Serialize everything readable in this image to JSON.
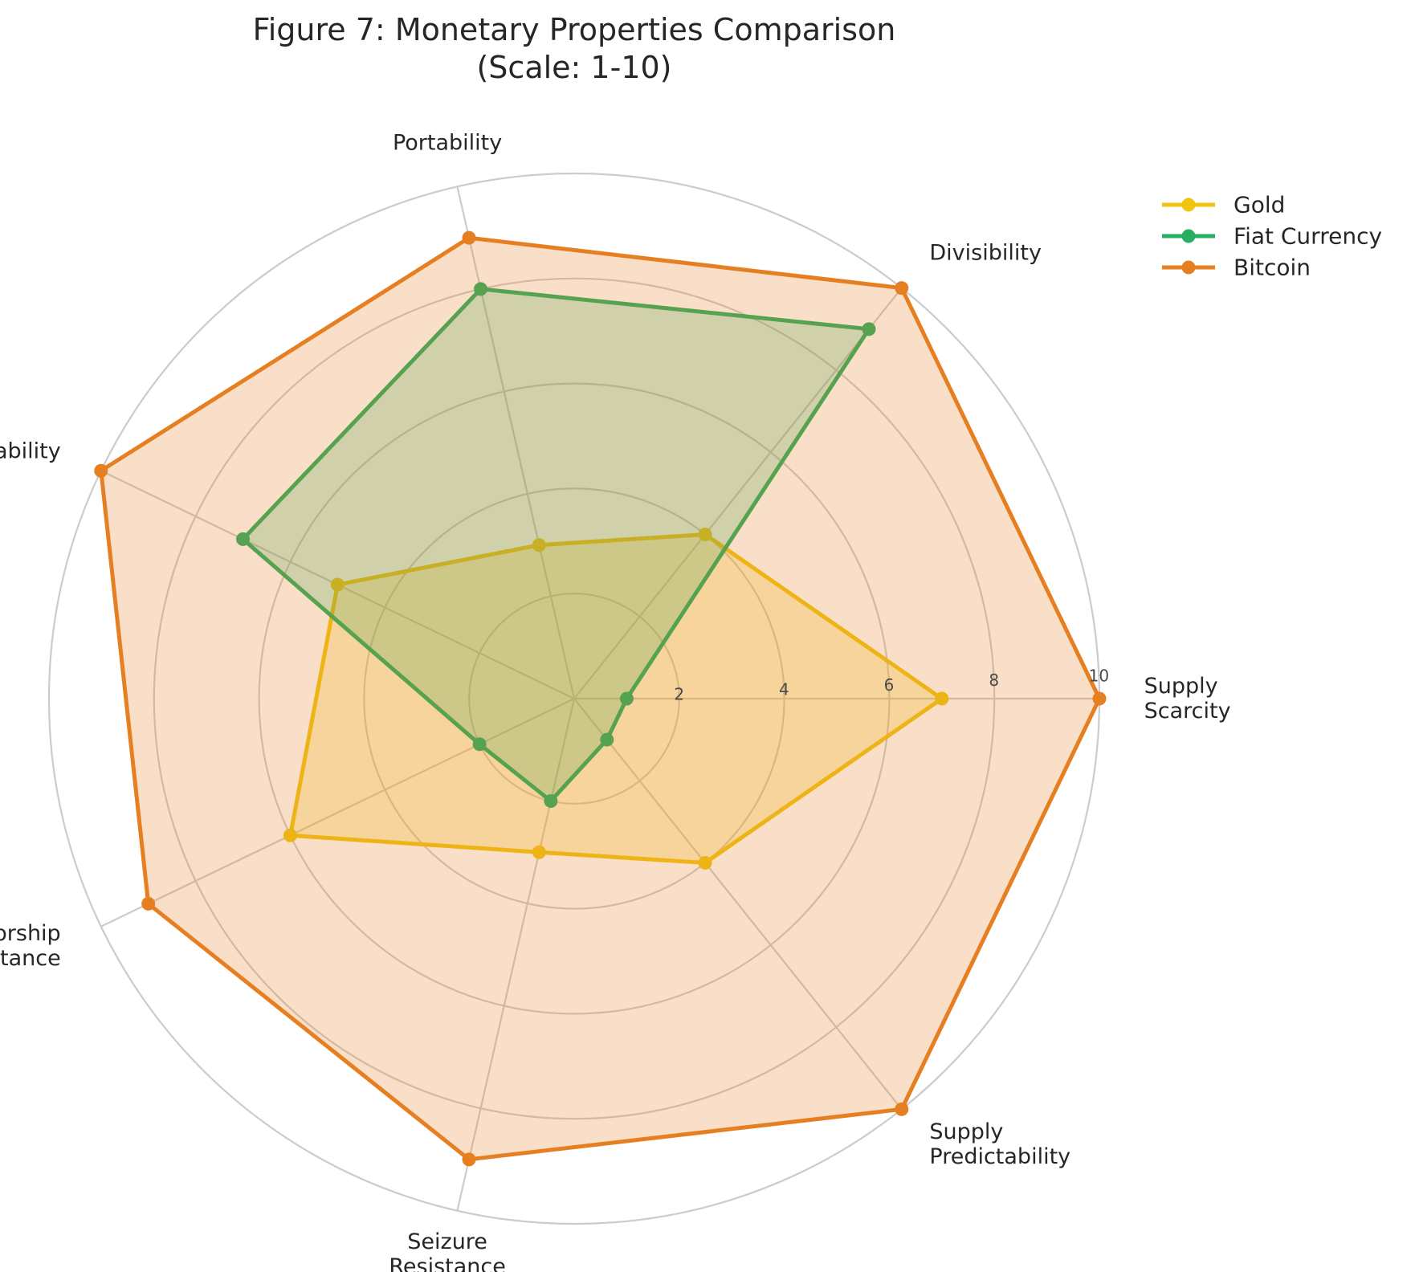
{
  "chart_data": {
    "type": "radar",
    "title": "Figure 7: Monetary Properties Comparison",
    "subtitle": "(Scale: 1-10)",
    "axes": [
      [
        "Supply",
        "Scarcity"
      ],
      [
        "Divisibility"
      ],
      [
        "Portability"
      ],
      [
        "Verifiability"
      ],
      [
        "Censorship",
        "Resistance"
      ],
      [
        "Seizure",
        "Resistance"
      ],
      [
        "Supply",
        "Predictability"
      ]
    ],
    "r_ticks": [
      "2",
      "4",
      "6",
      "8",
      "10"
    ],
    "r_tick_values": [
      2,
      4,
      6,
      8,
      10
    ],
    "rlim": [
      0,
      10
    ],
    "grid": true,
    "legend_position": "top-right",
    "series": [
      {
        "name": "Gold",
        "color": "#F1C40F",
        "values": [
          7,
          4,
          3,
          5,
          6,
          3,
          4
        ]
      },
      {
        "name": "Fiat Currency",
        "color": "#27AE60",
        "values": [
          1,
          9,
          8,
          7,
          2,
          2,
          1
        ]
      },
      {
        "name": "Bitcoin",
        "color": "#E67E22",
        "values": [
          10,
          10,
          9,
          10,
          9,
          9,
          10
        ]
      }
    ]
  }
}
